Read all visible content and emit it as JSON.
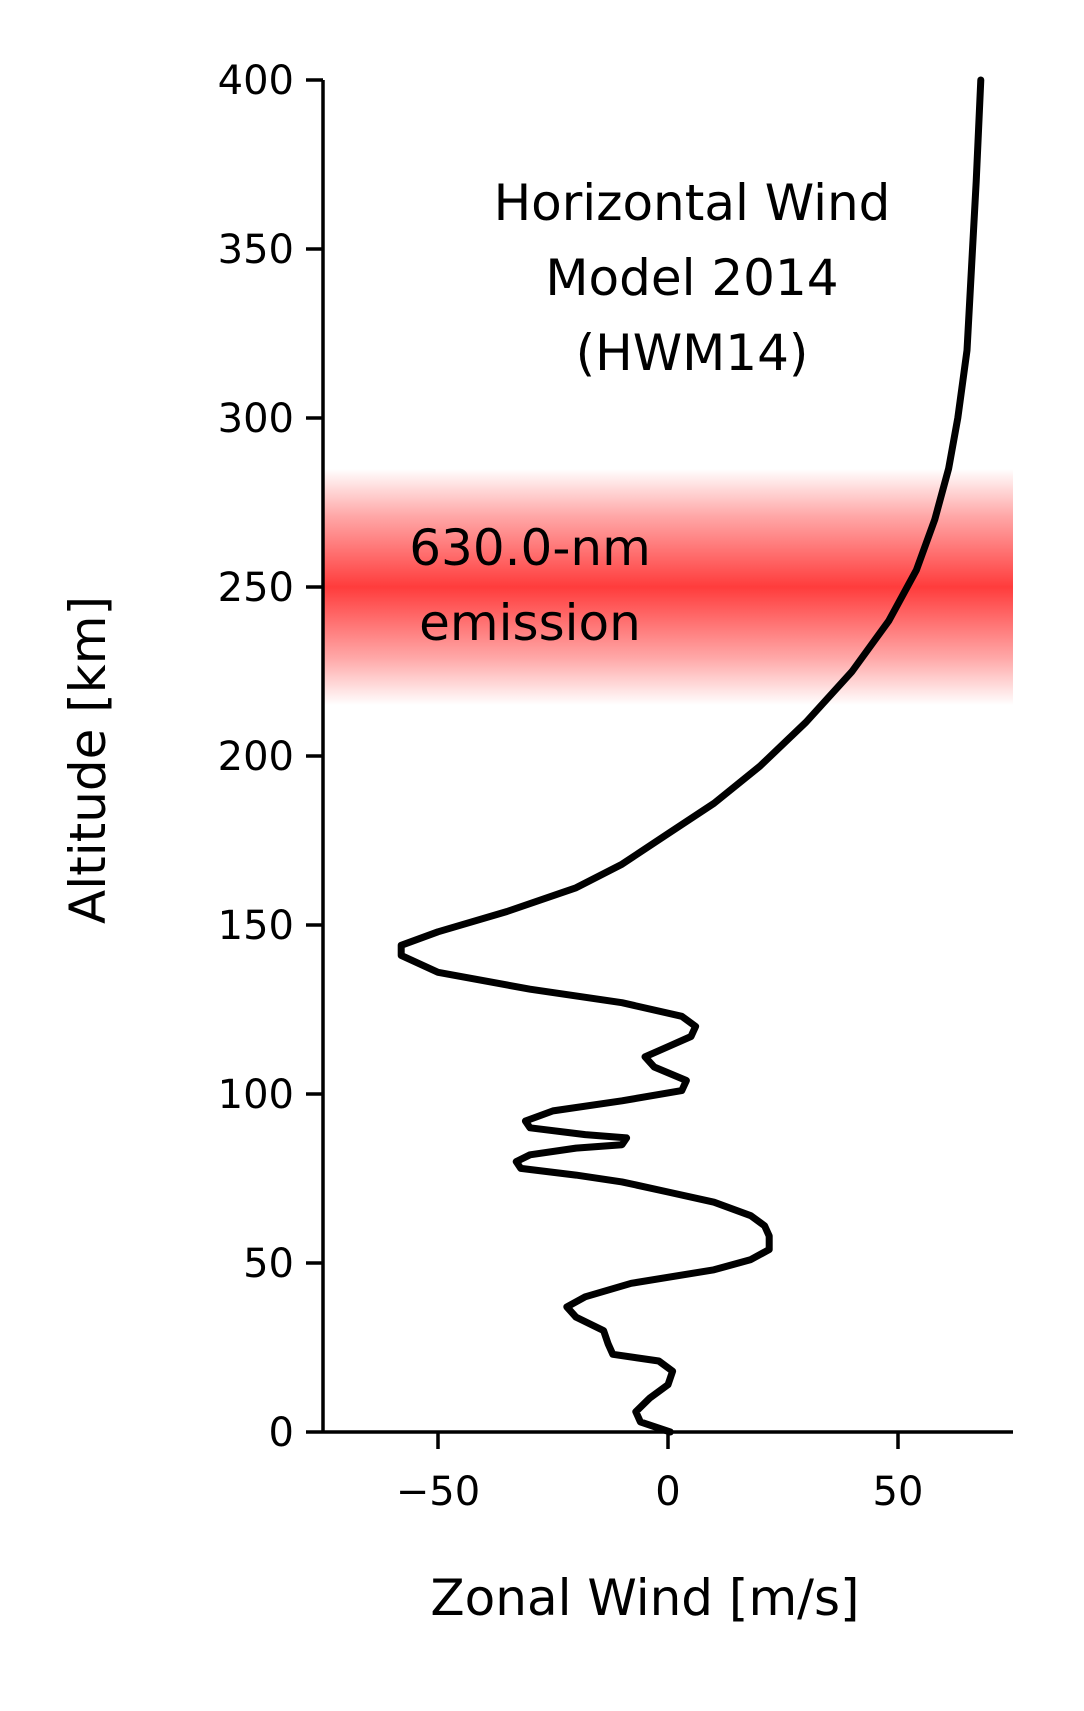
{
  "chart_data": {
    "type": "line",
    "xlabel": "Zonal Wind [m/s]",
    "ylabel": "Altitude [km]",
    "xlim": [
      -75,
      75
    ],
    "ylim": [
      0,
      400
    ],
    "xticks": [
      -50,
      0,
      50
    ],
    "xtick_labels": [
      "−50",
      "0",
      "50"
    ],
    "yticks": [
      0,
      50,
      100,
      150,
      200,
      250,
      300,
      350,
      400
    ],
    "ytick_labels": [
      "0",
      "50",
      "100",
      "150",
      "200",
      "250",
      "300",
      "350",
      "400"
    ],
    "grid": false,
    "annotations": {
      "model": [
        "Horizontal Wind",
        "Model 2014",
        "(HWM14)"
      ],
      "emission": [
        "630.0-nm",
        "emission"
      ]
    },
    "emission_band": {
      "center_km": 250,
      "extent_km": [
        215,
        285
      ],
      "color": "#ff3c3c"
    },
    "line_color": "#000000",
    "series": [
      {
        "x": [
          0.5,
          -6,
          -7,
          -4,
          0,
          1,
          -2,
          -12,
          -13,
          -14,
          -20,
          -22,
          -18,
          -8,
          10,
          18,
          22,
          22,
          21,
          18,
          10,
          0,
          -10,
          -20,
          -32,
          -33,
          -30,
          -20,
          -10,
          -9,
          -18,
          -30,
          -31,
          -25,
          -10,
          3,
          4,
          -3,
          -5,
          0,
          5,
          6,
          3,
          -10,
          -30,
          -50,
          -58,
          -58,
          -50,
          -35,
          -20,
          -10,
          0,
          10,
          20,
          30,
          40,
          48,
          54,
          58,
          61,
          63,
          65,
          66,
          67,
          68
        ],
        "y": [
          0,
          3,
          6,
          10,
          14,
          18,
          21,
          23,
          26,
          30,
          34,
          37,
          40,
          44,
          48,
          51,
          54,
          58,
          61,
          64,
          68,
          71,
          74,
          76,
          78,
          80,
          82,
          84,
          85,
          87,
          88,
          90,
          92,
          95,
          98,
          101,
          104,
          108,
          111,
          114,
          117,
          120,
          123,
          127,
          131,
          136,
          141,
          144,
          148,
          154,
          161,
          168,
          177,
          186,
          197,
          210,
          225,
          240,
          255,
          270,
          285,
          300,
          320,
          345,
          370,
          400
        ]
      }
    ]
  }
}
